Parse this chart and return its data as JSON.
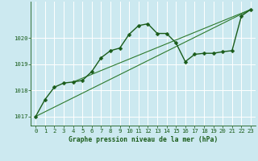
{
  "title": "Graphe pression niveau de la mer (hPa)",
  "background_color": "#cce9f0",
  "grid_color": "#ffffff",
  "line_color_main": "#1a5c1a",
  "line_color_thin": "#2d7a2d",
  "xlim": [
    -0.5,
    23.5
  ],
  "ylim": [
    1016.65,
    1021.4
  ],
  "yticks": [
    1017,
    1018,
    1019,
    1020
  ],
  "xticks": [
    0,
    1,
    2,
    3,
    4,
    5,
    6,
    7,
    8,
    9,
    10,
    11,
    12,
    13,
    14,
    15,
    16,
    17,
    18,
    19,
    20,
    21,
    22,
    23
  ],
  "series1_x": [
    0,
    1,
    2,
    3,
    4,
    5,
    6,
    7,
    8,
    9,
    10,
    11,
    12,
    13,
    14,
    15,
    16,
    17,
    18,
    19,
    20,
    21,
    22,
    23
  ],
  "series1_y": [
    1017.0,
    1017.65,
    1018.12,
    1018.28,
    1018.32,
    1018.38,
    1018.72,
    1019.25,
    1019.52,
    1019.62,
    1020.15,
    1020.48,
    1020.55,
    1020.18,
    1020.18,
    1019.82,
    1019.1,
    1019.38,
    1019.42,
    1019.42,
    1019.48,
    1019.52,
    1020.85,
    1021.1
  ],
  "series2_x": [
    0,
    23
  ],
  "series2_y": [
    1017.0,
    1021.1
  ],
  "series3_x": [
    4,
    23
  ],
  "series3_y": [
    1018.32,
    1021.1
  ],
  "marker_size": 2.5,
  "linewidth_main": 1.0,
  "linewidth_thin": 0.8,
  "tick_labelsize": 5.2,
  "xlabel_fontsize": 5.8
}
